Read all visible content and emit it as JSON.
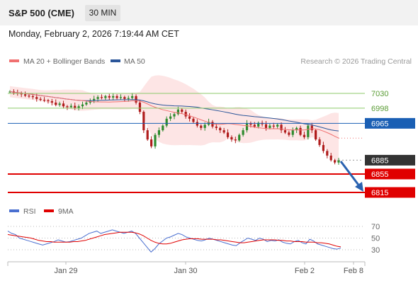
{
  "header": {
    "instrument": "S&P 500 (CME)",
    "timeframe": "30 MIN",
    "datetime": "Monday, February 2, 2026 7:19:44 AM CET"
  },
  "colors": {
    "ma20": "#f07070",
    "ma50": "#2a5599",
    "bollinger_fill": "#fde0e0",
    "resistance": "#8cc96a",
    "pivot": "#1a5fb4",
    "support": "#e00000",
    "current": "#333333",
    "rsi": "#4a6fd0",
    "rsi_ma": "#e00000",
    "arrow": "#2a62b0",
    "candle_up": "#2e8b2e",
    "candle_down": "#b01c1c"
  },
  "legend": {
    "ma20_label": "MA 20 + Bollinger Bands",
    "ma50_label": "MA 50",
    "copyright": "Research © 2026 Trading Central"
  },
  "rsi_legend": {
    "rsi_label": "RSI",
    "ma_label": "9MA"
  },
  "chart_data": [
    {
      "type": "candlestick",
      "x_ticks": [
        "Jan 29",
        "Jan 30",
        "Feb 2",
        "Feb 8"
      ],
      "ylim": [
        6800,
        7060
      ],
      "levels": [
        {
          "value": 7030,
          "label": "7030",
          "kind": "resistance"
        },
        {
          "value": 6998,
          "label": "6998",
          "kind": "resistance"
        },
        {
          "value": 6965,
          "label": "6965",
          "kind": "pivot"
        },
        {
          "value": 6885,
          "label": "6885",
          "kind": "current"
        },
        {
          "value": 6855,
          "label": "6855",
          "kind": "support"
        },
        {
          "value": 6815,
          "label": "6815",
          "kind": "support"
        }
      ],
      "close_path": [
        7034,
        7031,
        7030,
        7028,
        7025,
        7024,
        7022,
        7018,
        7016,
        7015,
        7013,
        7010,
        7005,
        7008,
        7002,
        7000,
        7003,
        6998,
        7002,
        7006,
        7010,
        7014,
        7018,
        7022,
        7020,
        7024,
        7021,
        7024,
        7020,
        7022,
        7018,
        7020,
        7024,
        7010,
        6990,
        6950,
        6930,
        6915,
        6940,
        6950,
        6960,
        6975,
        6980,
        6985,
        6995,
        6990,
        6980,
        6975,
        6968,
        6960,
        6955,
        6962,
        6968,
        6958,
        6955,
        6950,
        6945,
        6935,
        6930,
        6928,
        6940,
        6950,
        6965,
        6962,
        6958,
        6966,
        6963,
        6955,
        6960,
        6958,
        6962,
        6950,
        6945,
        6940,
        6950,
        6955,
        6940,
        6935,
        6960,
        6950,
        6930,
        6918,
        6905,
        6895,
        6885,
        6880,
        6885
      ]
    },
    {
      "type": "line",
      "title": "RSI",
      "y_ticks": [
        70,
        50,
        30
      ],
      "ylim": [
        20,
        80
      ],
      "series": [
        {
          "name": "RSI",
          "values": [
            62,
            58,
            56,
            50,
            48,
            46,
            44,
            42,
            40,
            38,
            40,
            42,
            44,
            47,
            45,
            43,
            44,
            46,
            48,
            50,
            54,
            58,
            60,
            62,
            58,
            60,
            62,
            64,
            62,
            60,
            58,
            60,
            62,
            58,
            50,
            42,
            34,
            26,
            32,
            40,
            45,
            50,
            52,
            55,
            58,
            56,
            52,
            50,
            48,
            46,
            45,
            47,
            50,
            48,
            46,
            44,
            42,
            40,
            38,
            37,
            42,
            46,
            50,
            48,
            46,
            50,
            48,
            44,
            46,
            45,
            47,
            43,
            41,
            40,
            44,
            46,
            42,
            40,
            48,
            45,
            40,
            38,
            36,
            34,
            32,
            31,
            33
          ]
        },
        {
          "name": "9MA",
          "values": [
            56,
            55,
            54,
            53,
            52,
            51,
            50,
            48,
            46,
            45,
            44,
            44,
            43,
            43,
            43,
            43,
            43,
            44,
            44,
            45,
            46,
            48,
            50,
            52,
            54,
            56,
            57,
            58,
            59,
            60,
            60,
            60,
            60,
            59,
            57,
            54,
            50,
            46,
            43,
            41,
            40,
            40,
            41,
            43,
            45,
            47,
            48,
            49,
            49,
            49,
            48,
            48,
            48,
            48,
            47,
            47,
            46,
            45,
            44,
            43,
            42,
            42,
            43,
            44,
            45,
            46,
            47,
            47,
            47,
            47,
            46,
            46,
            45,
            45,
            44,
            44,
            44,
            43,
            43,
            43,
            42,
            42,
            41,
            40,
            38,
            36,
            35
          ]
        }
      ]
    }
  ]
}
